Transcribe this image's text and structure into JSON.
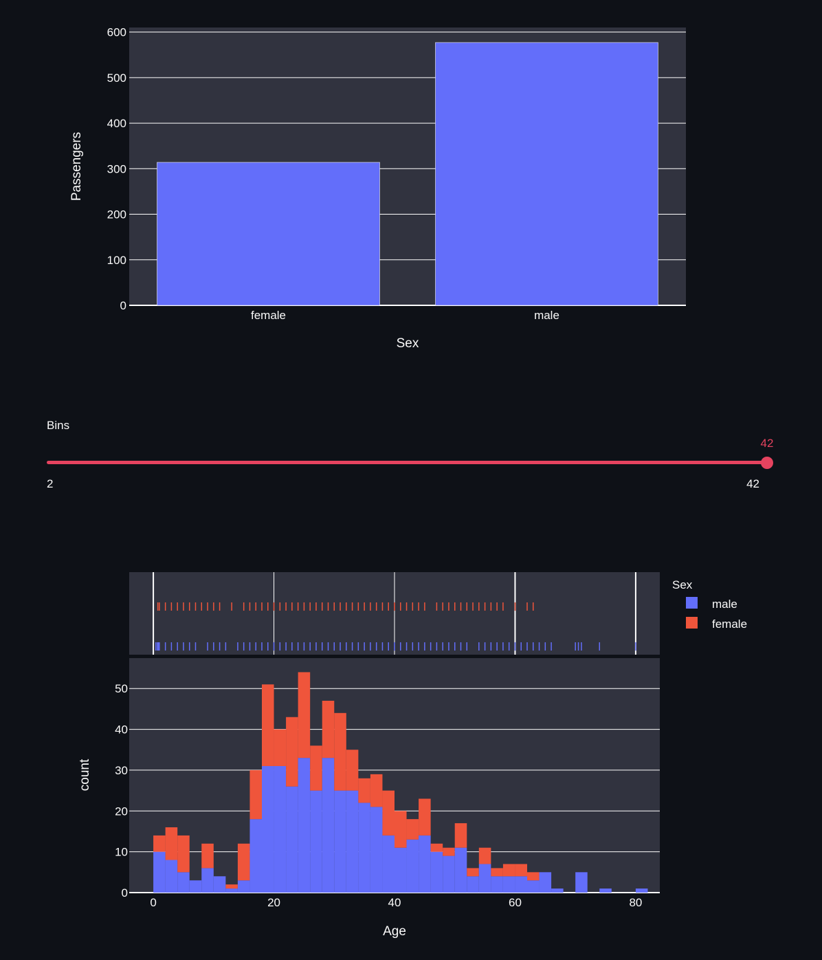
{
  "colors": {
    "background": "#0e1117",
    "plot_bg": "#31333f",
    "grid": "#ffffff",
    "male": "#636efa",
    "female": "#ef553b",
    "accent": "#e6435f",
    "text": "#fafafa"
  },
  "slider": {
    "label": "Bins",
    "value": 42,
    "min": 2,
    "max": 42,
    "value_text": "42",
    "min_text": "2",
    "max_text": "42"
  },
  "chart_data": [
    {
      "type": "bar",
      "categories": [
        "female",
        "male"
      ],
      "values": [
        314,
        577
      ],
      "xlabel": "Sex",
      "ylabel": "Passengers",
      "ylim": [
        0,
        610
      ],
      "yticks": [
        0,
        100,
        200,
        300,
        400,
        500,
        600
      ],
      "grid": true,
      "color": "#636efa"
    },
    {
      "type": "histogram",
      "barmode": "stack",
      "xlabel": "Age",
      "ylabel": "count",
      "xlim": [
        -4,
        84
      ],
      "ylim": [
        0,
        54
      ],
      "xticks": [
        0,
        20,
        40,
        60,
        80
      ],
      "yticks": [
        0,
        10,
        20,
        30,
        40,
        50
      ],
      "bin_start": 0,
      "bin_width": 2,
      "legend_title": "Sex",
      "legend_position": "right",
      "series": [
        {
          "name": "male",
          "color": "#636efa",
          "values": [
            10,
            8,
            5,
            3,
            6,
            4,
            1,
            3,
            18,
            31,
            31,
            26,
            33,
            25,
            33,
            25,
            25,
            22,
            21,
            14,
            11,
            13,
            14,
            10,
            9,
            11,
            4,
            7,
            4,
            4,
            4,
            3,
            5,
            1,
            0,
            5,
            0,
            1,
            0,
            0,
            1
          ]
        },
        {
          "name": "female",
          "color": "#ef553b",
          "values": [
            4,
            8,
            9,
            0,
            6,
            0,
            1,
            9,
            12,
            20,
            9,
            17,
            21,
            11,
            14,
            19,
            10,
            6,
            8,
            11,
            9,
            5,
            9,
            2,
            2,
            6,
            2,
            4,
            2,
            3,
            3,
            2,
            0,
            0,
            0,
            0,
            0,
            0,
            0,
            0,
            0
          ]
        }
      ],
      "rug": {
        "female": [
          0.75,
          1,
          2,
          3,
          4,
          5,
          6,
          7,
          8,
          9,
          10,
          11,
          13,
          15,
          16,
          17,
          18,
          19,
          20,
          21,
          22,
          23,
          24,
          25,
          26,
          27,
          28,
          29,
          30,
          31,
          32,
          33,
          34,
          35,
          36,
          37,
          38,
          39,
          40,
          41,
          42,
          43,
          44,
          45,
          47,
          48,
          49,
          50,
          51,
          52,
          53,
          54,
          55,
          56,
          57,
          58,
          60,
          63,
          62
        ],
        "male": [
          0.42,
          0.67,
          0.83,
          1,
          2,
          3,
          4,
          5,
          6,
          7,
          9,
          10,
          11,
          12,
          14,
          15,
          16,
          17,
          18,
          19,
          20,
          21,
          22,
          23,
          24,
          25,
          26,
          27,
          28,
          29,
          30,
          31,
          32,
          33,
          34,
          35,
          36,
          37,
          38,
          39,
          40,
          41,
          42,
          43,
          44,
          45,
          46,
          47,
          48,
          49,
          50,
          51,
          52,
          54,
          55,
          56,
          57,
          58,
          59,
          60,
          61,
          62,
          63,
          64,
          65,
          66,
          70,
          70.5,
          71,
          74,
          80
        ]
      }
    }
  ]
}
